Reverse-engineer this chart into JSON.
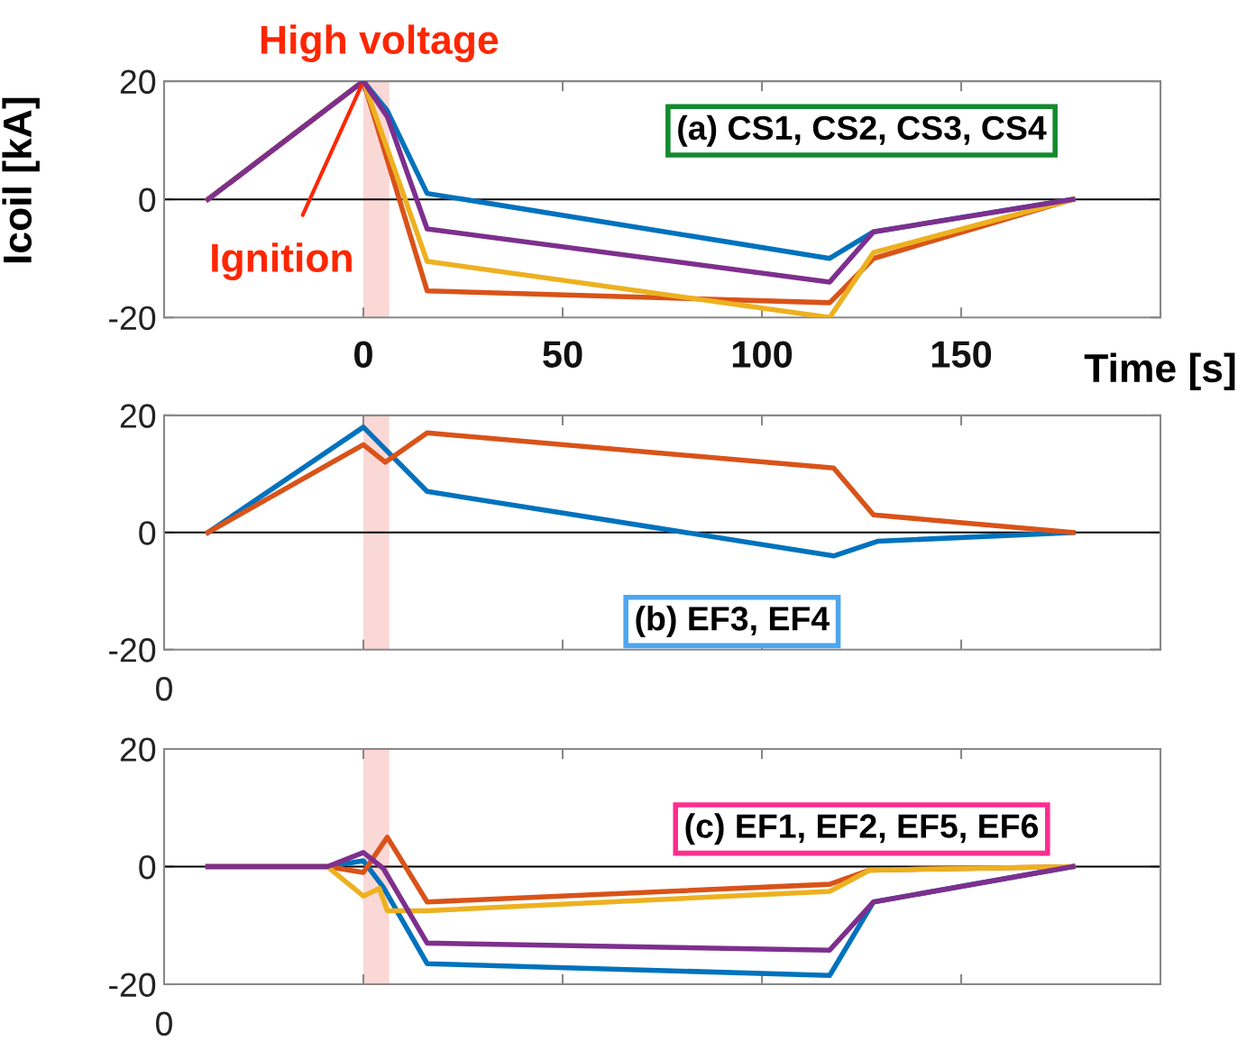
{
  "chart_data": [
    {
      "type": "line",
      "title": "High voltage",
      "xlabel": "Time [s]",
      "ylabel": "Icoil [kA]",
      "xlim": [
        -50,
        200
      ],
      "xticks": [
        0,
        50,
        100,
        150
      ],
      "ylim": [
        -20,
        20
      ],
      "yticks": [
        -20,
        0,
        20
      ],
      "grid": false,
      "legend": false,
      "marker": "none",
      "line_style": "solid",
      "series": [
        {
          "color": "#0072bd",
          "x": [
            -39,
            0,
            6,
            16,
            117,
            128,
            178
          ],
          "values": [
            0,
            20,
            15,
            1,
            -10,
            -5.5,
            0
          ]
        },
        {
          "color": "#d95319",
          "x": [
            -39,
            0,
            16,
            117,
            128,
            178
          ],
          "values": [
            0,
            20,
            -15.5,
            -17.5,
            -10,
            0
          ]
        },
        {
          "color": "#edb120",
          "x": [
            -39,
            0,
            16,
            117,
            128,
            178
          ],
          "values": [
            0,
            20,
            -10.5,
            -20,
            -9,
            0
          ]
        },
        {
          "color": "#7e2f8e",
          "x": [
            -39,
            0,
            6,
            16,
            117,
            128,
            178
          ],
          "values": [
            0,
            20,
            14,
            -5,
            -14,
            -5.5,
            0
          ]
        }
      ],
      "ref_lines": [
        {
          "axis": "y",
          "value": 0,
          "color": "#000000"
        }
      ],
      "bands": [
        {
          "axis": "x",
          "from": 0,
          "to": 6.5,
          "color": "#f8c8c4"
        }
      ],
      "annotations": [
        {
          "text": "Ignition",
          "x": 0,
          "y": 20
        },
        "(a) CS1, CS2, CS3, CS4"
      ]
    },
    {
      "type": "line",
      "xlim": [
        -50,
        200
      ],
      "xticks": [
        {
          "value": 0,
          "label": null
        },
        {
          "value": 50,
          "label": null
        },
        {
          "value": 100,
          "label": null
        },
        {
          "value": 150,
          "label": null
        }
      ],
      "ylim": [
        -20,
        20
      ],
      "yticks": [
        -20,
        0,
        20
      ],
      "tick_labels": "y",
      "grid": false,
      "legend": false,
      "marker": "none",
      "line_style": "solid",
      "series": [
        {
          "color": "#0072bd",
          "x": [
            -39,
            0,
            16,
            118,
            129,
            178
          ],
          "values": [
            0,
            18,
            7,
            -4,
            -1.5,
            0
          ]
        },
        {
          "color": "#d95319",
          "x": [
            -39,
            0,
            5.5,
            16,
            118,
            128,
            178
          ],
          "values": [
            0,
            15,
            12,
            17,
            11,
            3,
            0
          ]
        }
      ],
      "ref_lines": [
        {
          "axis": "y",
          "value": 0,
          "color": "#000000"
        }
      ],
      "bands": [
        {
          "axis": "x",
          "from": 0,
          "to": 6.5,
          "color": "#f8c8c4"
        }
      ],
      "annotations": [
        "(b) EF3, EF4",
        "0"
      ]
    },
    {
      "type": "line",
      "xlim": [
        -50,
        200
      ],
      "xticks": [
        {
          "value": 0,
          "label": null
        },
        {
          "value": 50,
          "label": null
        },
        {
          "value": 100,
          "label": null
        },
        {
          "value": 150,
          "label": null
        }
      ],
      "ylim": [
        -20,
        20
      ],
      "yticks": [
        -20,
        0,
        20
      ],
      "tick_labels": "y",
      "grid": false,
      "legend": false,
      "marker": "none",
      "line_style": "solid",
      "series": [
        {
          "color": "#0072bd",
          "x": [
            -39,
            -9,
            0,
            5,
            16,
            117,
            128,
            178
          ],
          "values": [
            0,
            0,
            1,
            -3.5,
            -16.5,
            -18.5,
            -6,
            0
          ]
        },
        {
          "color": "#d95319",
          "x": [
            -39,
            -9,
            0,
            6,
            16,
            117,
            127,
            178
          ],
          "values": [
            0,
            0,
            -1,
            5,
            -6,
            -3,
            -0.6,
            0
          ]
        },
        {
          "color": "#edb120",
          "x": [
            -39,
            -9,
            0,
            4,
            6,
            16,
            117,
            127,
            178
          ],
          "values": [
            0,
            0,
            -5,
            -3.7,
            -7.5,
            -7.5,
            -4.2,
            -0.6,
            0
          ]
        },
        {
          "color": "#7e2f8e",
          "x": [
            -39,
            -9,
            0,
            5,
            16,
            117,
            128,
            178
          ],
          "values": [
            0,
            0,
            2.4,
            -0.3,
            -13,
            -14.2,
            -6,
            0
          ]
        }
      ],
      "ref_lines": [
        {
          "axis": "y",
          "value": 0,
          "color": "#000000"
        }
      ],
      "bands": [
        {
          "axis": "x",
          "from": 0,
          "to": 6.5,
          "color": "#f8c8c4"
        }
      ],
      "annotations": [
        "(c) EF1, EF2, EF5, EF6",
        "0"
      ]
    }
  ]
}
